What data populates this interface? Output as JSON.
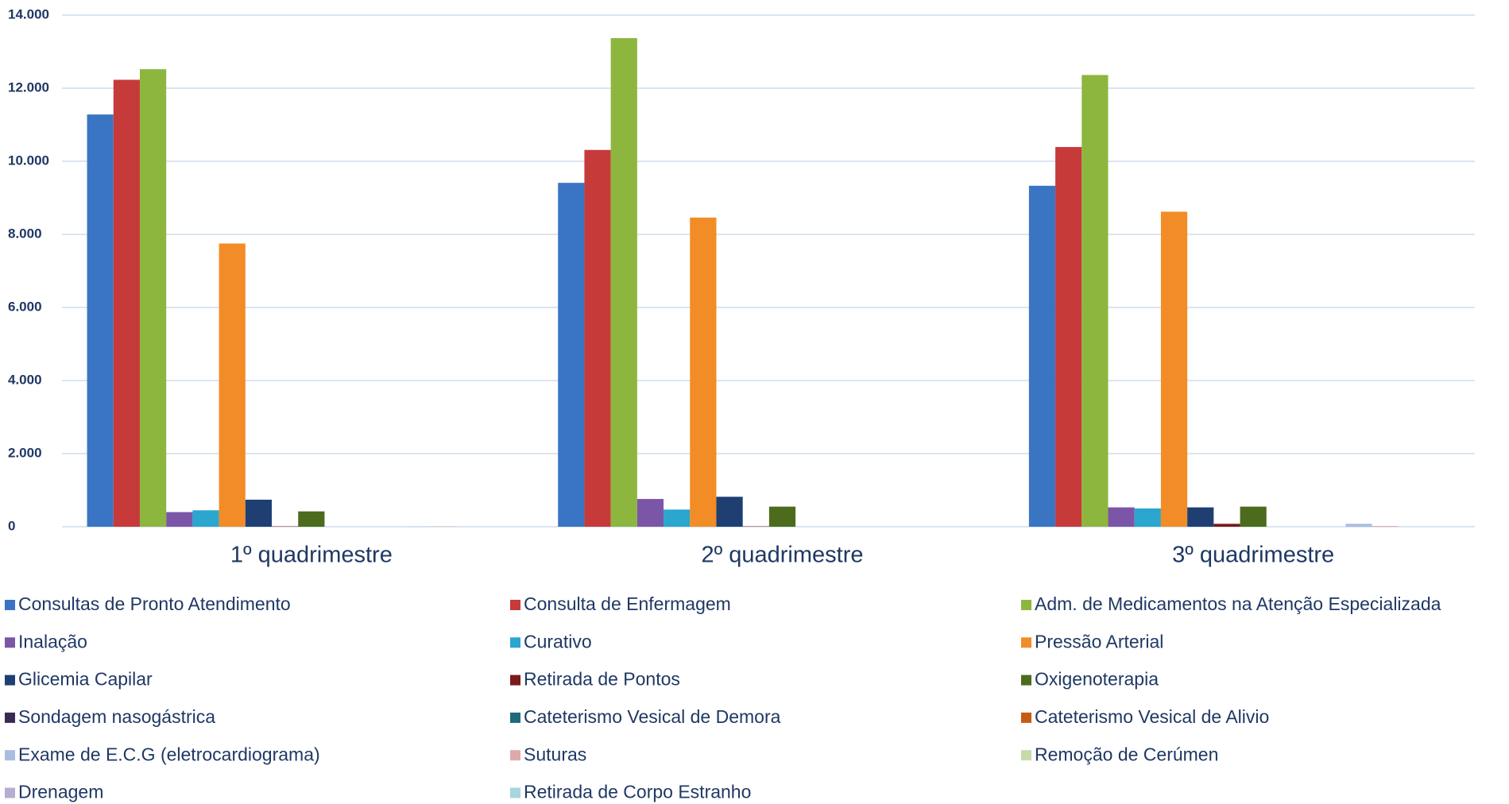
{
  "chart_data": {
    "type": "bar",
    "categories": [
      "1º quadrimestre",
      "2º quadrimestre",
      "3º quadrimestre"
    ],
    "series": [
      {
        "name": "Consultas de Pronto Atendimento",
        "color": "#3a75c4",
        "values": [
          11280,
          9410,
          9330
        ]
      },
      {
        "name": "Consulta de Enfermagem",
        "color": "#c73a3a",
        "values": [
          12230,
          10310,
          10390
        ]
      },
      {
        "name": "Adm. de Medicamentos na Atenção Especializada",
        "color": "#8db63e",
        "values": [
          12520,
          13370,
          12360
        ]
      },
      {
        "name": "Inalação",
        "color": "#7b56a6",
        "values": [
          400,
          760,
          530
        ]
      },
      {
        "name": "Curativo",
        "color": "#2aa6cf",
        "values": [
          450,
          470,
          500
        ]
      },
      {
        "name": "Pressão Arterial",
        "color": "#f28c26",
        "values": [
          7750,
          8460,
          8620
        ]
      },
      {
        "name": "Glicemia Capilar",
        "color": "#1f3f73",
        "values": [
          740,
          820,
          530
        ]
      },
      {
        "name": "Retirada de Pontos",
        "color": "#7b1a1a",
        "values": [
          10,
          10,
          80
        ]
      },
      {
        "name": "Oxigenoterapia",
        "color": "#4d6b1d",
        "values": [
          420,
          550,
          550
        ]
      },
      {
        "name": "Sondagem nasogástrica",
        "color": "#3a2a52",
        "values": [
          0,
          0,
          0
        ]
      },
      {
        "name": "Cateterismo Vesical de Demora",
        "color": "#1e6a7a",
        "values": [
          0,
          0,
          0
        ]
      },
      {
        "name": "Cateterismo Vesical de Alivio",
        "color": "#c85a12",
        "values": [
          0,
          0,
          0
        ]
      },
      {
        "name": "Exame de E.C.G (eletrocardiograma)",
        "color": "#a9bde0",
        "values": [
          5,
          0,
          80
        ]
      },
      {
        "name": "Suturas",
        "color": "#e0a9a9",
        "values": [
          10,
          0,
          20
        ]
      },
      {
        "name": "Remoção de Cerúmen",
        "color": "#c6dba8",
        "values": [
          0,
          0,
          0
        ]
      },
      {
        "name": "Drenagem",
        "color": "#b9acd2",
        "values": [
          0,
          0,
          0
        ]
      },
      {
        "name": "Retirada de Corpo Estranho",
        "color": "#a8d5e0",
        "values": [
          0,
          0,
          0
        ]
      }
    ],
    "ylim": [
      0,
      14000
    ],
    "yticks": [
      0,
      {
        "value": 2000,
        "label": "2.000"
      },
      {
        "value": 4000,
        "label": "4.000"
      },
      {
        "value": 6000,
        "label": "6.000"
      },
      {
        "value": 8000,
        "label": "8.000"
      },
      {
        "value": 10000,
        "label": "10.000"
      },
      {
        "value": 12000,
        "label": "12.000"
      },
      {
        "value": 14000,
        "label": "14.000"
      }
    ],
    "grid": true,
    "legend": "bottom"
  }
}
